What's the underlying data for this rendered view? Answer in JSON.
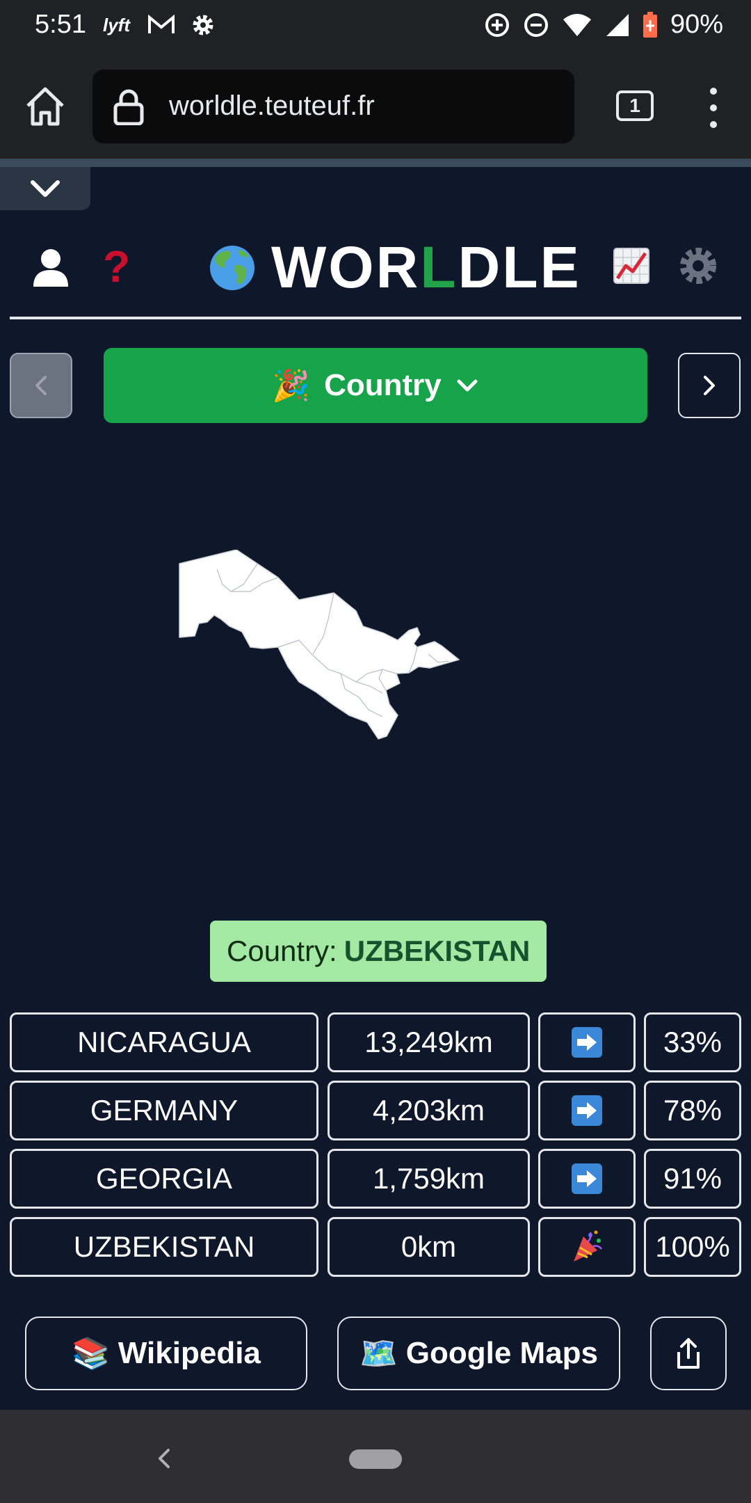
{
  "status_bar": {
    "time": "5:51",
    "battery": "90%",
    "left_icons": [
      "lyft-icon",
      "gmail-icon",
      "settings-gear-icon"
    ],
    "right_icons": [
      "data-saver-icon",
      "do-not-disturb-icon",
      "wifi-icon",
      "signal-icon",
      "battery-icon"
    ]
  },
  "browser": {
    "url": "worldle.teuteuf.fr",
    "tab_count": "1"
  },
  "header": {
    "title_pre": "WOR",
    "title_highlight": "L",
    "title_post": "DLE",
    "help_glyph": "?"
  },
  "mode_selector": {
    "label": "Country",
    "icon": "🎉"
  },
  "answer": {
    "prefix": "Country:",
    "country": "UZBEKISTAN"
  },
  "guesses": [
    {
      "name": "NICARAGUA",
      "distance": "13,249km",
      "direction": "arrow-right",
      "percent": "33%"
    },
    {
      "name": "GERMANY",
      "distance": "4,203km",
      "direction": "arrow-right",
      "percent": "78%"
    },
    {
      "name": "GEORGIA",
      "distance": "1,759km",
      "direction": "arrow-right",
      "percent": "91%"
    },
    {
      "name": "UZBEKISTAN",
      "distance": "0km",
      "direction": "party-popper",
      "percent": "100%"
    }
  ],
  "buttons": {
    "wikipedia": "Wikipedia",
    "wikipedia_icon": "📚",
    "google_maps": "Google Maps",
    "google_maps_icon": "🗺️"
  },
  "colors": {
    "background": "#0f172a",
    "accent_green": "#16a34a",
    "answer_bg": "#a3e8a3",
    "help_red": "#c8102e"
  }
}
